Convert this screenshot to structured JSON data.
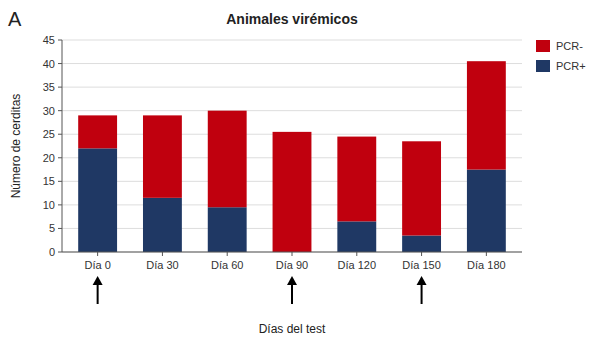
{
  "chart_data": {
    "type": "bar",
    "stacked": true,
    "title": "Animales virémicos",
    "annotations": [
      "A"
    ],
    "xlabel": "Días del test",
    "ylabel": "Número de cerditas",
    "categories": [
      "Día 0",
      "Día 30",
      "Día 60",
      "Día 90",
      "Día 120",
      "Día 150",
      "Día 180"
    ],
    "series": [
      {
        "name": "PCR+",
        "color": "#1F3864",
        "values": [
          22,
          11.5,
          9.5,
          0,
          6.5,
          3.5,
          17.5
        ]
      },
      {
        "name": "PCR-",
        "color": "#C0000E",
        "values": [
          7,
          17.5,
          20.5,
          25.5,
          18,
          20,
          23
        ]
      }
    ],
    "ylim": [
      0,
      45
    ],
    "yticks": [
      0,
      5,
      10,
      15,
      20,
      25,
      30,
      35,
      40,
      45
    ],
    "grid": true,
    "legend": "upper right",
    "arrows": [
      0,
      3,
      5
    ]
  }
}
